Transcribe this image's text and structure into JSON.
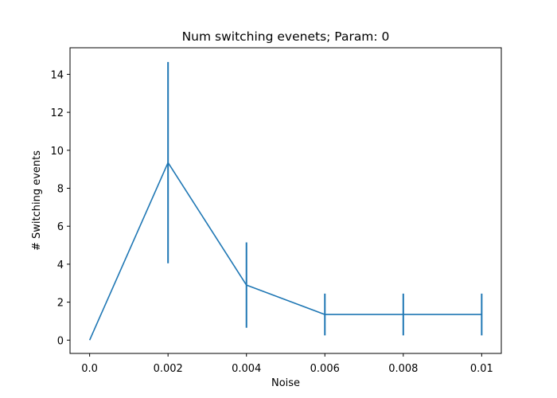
{
  "chart_data": {
    "type": "line",
    "title": "Num switching evenets; Param: 0",
    "xlabel": "Noise",
    "ylabel": "# Switching events",
    "xlim": [
      -0.0005,
      0.0105
    ],
    "ylim": [
      -0.7,
      15.4
    ],
    "xticks": [
      0.0,
      0.002,
      0.004,
      0.006,
      0.008,
      0.01
    ],
    "xtick_labels": [
      "0.0",
      "0.002",
      "0.004",
      "0.006",
      "0.008",
      "0.01"
    ],
    "yticks": [
      0,
      2,
      4,
      6,
      8,
      10,
      12,
      14
    ],
    "ytick_labels": [
      "0",
      "2",
      "4",
      "6",
      "8",
      "10",
      "12",
      "14"
    ],
    "grid": false,
    "series": [
      {
        "color": "#1f77b4",
        "x": [
          0.0,
          0.002,
          0.004,
          0.006,
          0.008,
          0.01
        ],
        "y": [
          0.0,
          9.35,
          2.9,
          1.35,
          1.35,
          1.35
        ],
        "error": [
          0.0,
          5.3,
          2.25,
          1.1,
          1.1,
          1.1
        ]
      }
    ]
  }
}
